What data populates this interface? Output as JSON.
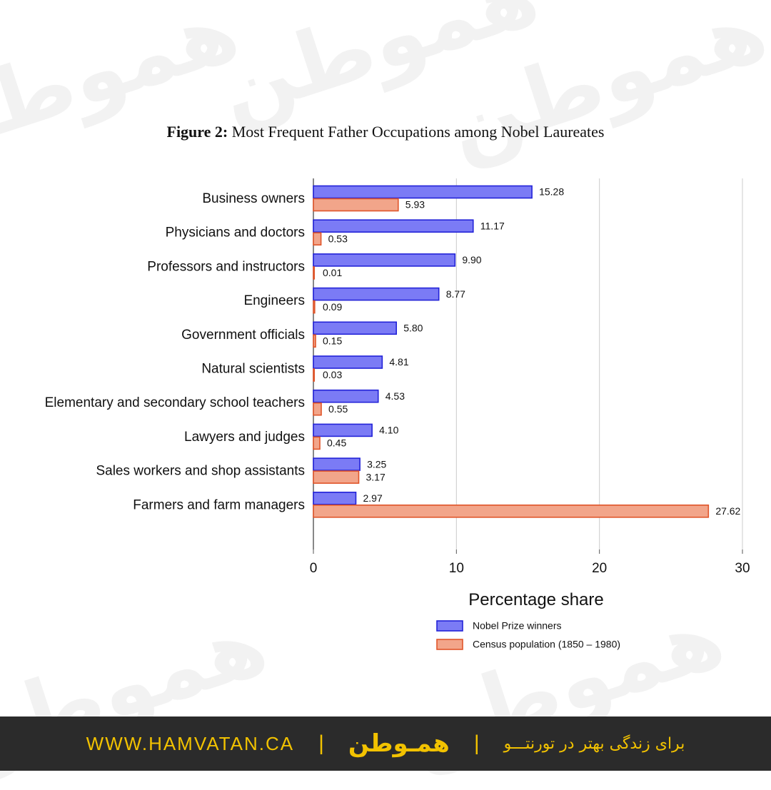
{
  "figure": {
    "label": "Figure 2:",
    "title": "Most Frequent Father Occupations among Nobel Laureates"
  },
  "chart_data": {
    "type": "bar",
    "orientation": "horizontal",
    "categories": [
      "Business owners",
      "Physicians and doctors",
      "Professors and instructors",
      "Engineers",
      "Government officials",
      "Natural scientists",
      "Elementary and secondary school teachers",
      "Lawyers and judges",
      "Sales workers and shop assistants",
      "Farmers and farm managers"
    ],
    "series": [
      {
        "name": "Nobel Prize winners",
        "values": [
          15.28,
          11.17,
          9.9,
          8.77,
          5.8,
          4.81,
          4.53,
          4.1,
          3.25,
          2.97
        ],
        "labels": [
          "15.28",
          "11.17",
          "9.90",
          "8.77",
          "5.80",
          "4.81",
          "4.53",
          "4.10",
          "3.25",
          "2.97"
        ],
        "fill": "#7b7bf5",
        "stroke": "#2323d8"
      },
      {
        "name": "Census population (1850 – 1980)",
        "values": [
          5.93,
          0.53,
          0.01,
          0.09,
          0.15,
          0.03,
          0.55,
          0.45,
          3.17,
          27.62
        ],
        "labels": [
          "5.93",
          "0.53",
          "0.01",
          "0.09",
          "0.15",
          "0.03",
          "0.55",
          "0.45",
          "3.17",
          "27.62"
        ],
        "fill": "#f2a58a",
        "stroke": "#e0552a"
      }
    ],
    "xlabel": "Percentage share",
    "xlim": [
      0,
      30
    ],
    "xticks": [
      0,
      10,
      20,
      30
    ],
    "xtick_labels": [
      "0",
      "10",
      "20",
      "30"
    ],
    "grid": true,
    "legend_position": "bottom-right"
  },
  "footer": {
    "url": "WWW.HAMVATAN.CA",
    "separator": "|",
    "logo": "همـوطن",
    "tagline": "برای زندگی بهتر در تورنتـــو"
  },
  "colors": {
    "footer_bg": "#2b2b2b",
    "footer_text": "#f2c200",
    "grid": "#cccccc"
  }
}
